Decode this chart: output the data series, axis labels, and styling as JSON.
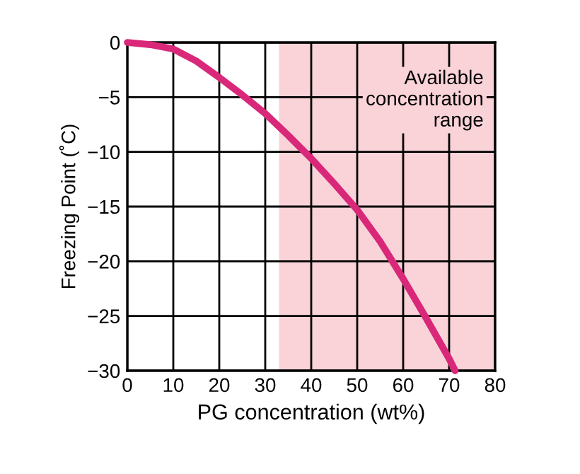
{
  "chart_data": {
    "type": "line",
    "xlabel": "PG concentration (wt%)",
    "ylabel": "Freezing Point (˚C)",
    "x": [
      0,
      5,
      10,
      15,
      20,
      25,
      30,
      35,
      40,
      45,
      50,
      55,
      60,
      65,
      70,
      71.3
    ],
    "series": [
      {
        "color": "#d9287a",
        "values": [
          0,
          -0.2,
          -0.6,
          -1.7,
          -3.2,
          -4.8,
          -6.5,
          -8.5,
          -10.6,
          -12.9,
          -15.3,
          -18.2,
          -21.6,
          -25.2,
          -28.9,
          -30
        ]
      }
    ],
    "bands": [
      {
        "axis": "x",
        "from": 33,
        "to": 80,
        "label": "Available\nconcentration\nrange",
        "color": "#f9d3d8"
      }
    ],
    "xlim": [
      0,
      80
    ],
    "ylim": [
      -30,
      0
    ],
    "xticks": [
      0,
      10,
      20,
      30,
      40,
      50,
      60,
      70,
      80
    ],
    "yticks": [
      0,
      {
        "value": -5,
        "label": "−5"
      },
      {
        "value": -10,
        "label": "−10"
      },
      {
        "value": -15,
        "label": "−15"
      },
      {
        "value": -20,
        "label": "−20"
      },
      {
        "value": -25,
        "label": "−25"
      },
      {
        "value": -30,
        "label": "−30"
      }
    ],
    "grid": true,
    "marker": "none",
    "line_style": "solid"
  }
}
